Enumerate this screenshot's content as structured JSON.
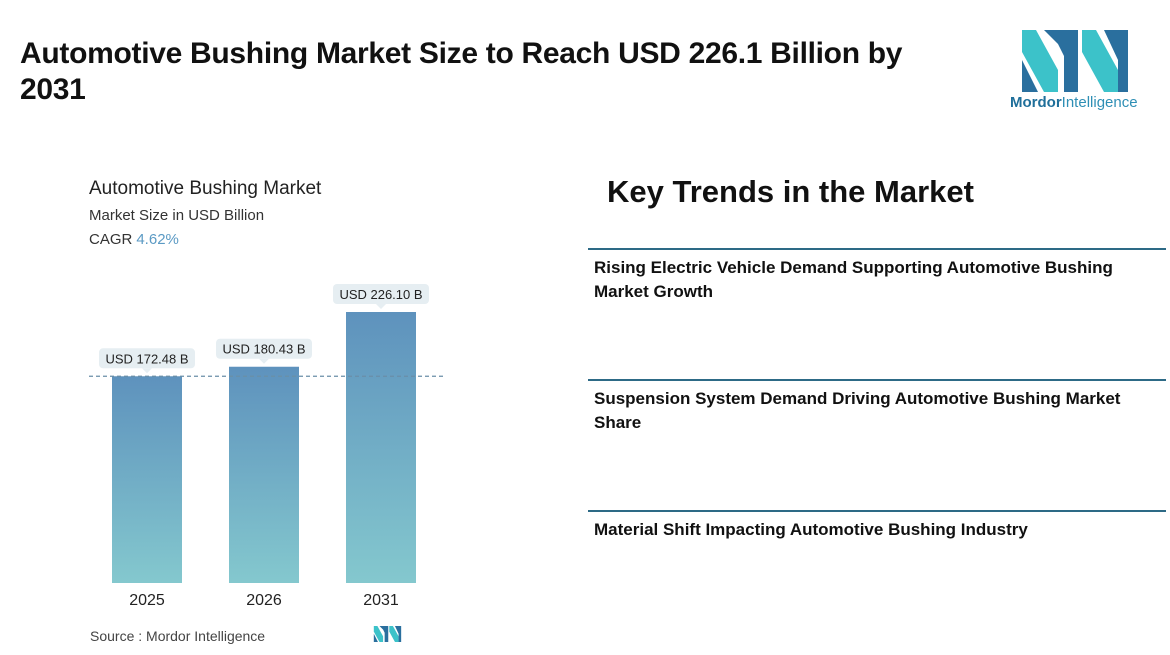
{
  "header": {
    "title": "Automotive Bushing Market Size to Reach USD 226.1 Billion by 2031",
    "logo_text_bold": "Mordor",
    "logo_text_rest": "Intelligence"
  },
  "chart_panel": {
    "title": "Automotive Bushing Market",
    "subtitle": "Market Size in USD Billion",
    "cagr_label": "CAGR",
    "cagr_value": "4.62%",
    "source": "Source :  Mordor Intelligence"
  },
  "chart_data": {
    "type": "bar",
    "title": "Automotive Bushing Market",
    "ylabel": "Market Size in USD Billion",
    "categories": [
      "2025",
      "2026",
      "2031"
    ],
    "values": [
      172.48,
      180.43,
      226.1
    ],
    "data_labels": [
      "USD 172.48 B",
      "USD 180.43 B",
      "USD 226.10 B"
    ],
    "reference_line": 172.48,
    "ylim": [
      0,
      226.1
    ],
    "grid": false,
    "colors": {
      "bar_top": "#5e92bd",
      "bar_bottom": "#84c8ce",
      "label_bg": "#e6eef2",
      "ref_line": "#6a8fa8"
    }
  },
  "trends": {
    "title": "Key Trends in the Market",
    "items": [
      "Rising Electric Vehicle Demand Supporting Automotive Bushing Market Growth",
      "Suspension System Demand Driving Automotive Bushing Market Share",
      "Material Shift Impacting Automotive Bushing Industry"
    ]
  },
  "colors": {
    "accent_line": "#2d6a86",
    "logo_dark": "#2a6f9e",
    "logo_light": "#3cc2c9"
  },
  "icons": {
    "logo": "mordor-intelligence-logo-icon"
  }
}
